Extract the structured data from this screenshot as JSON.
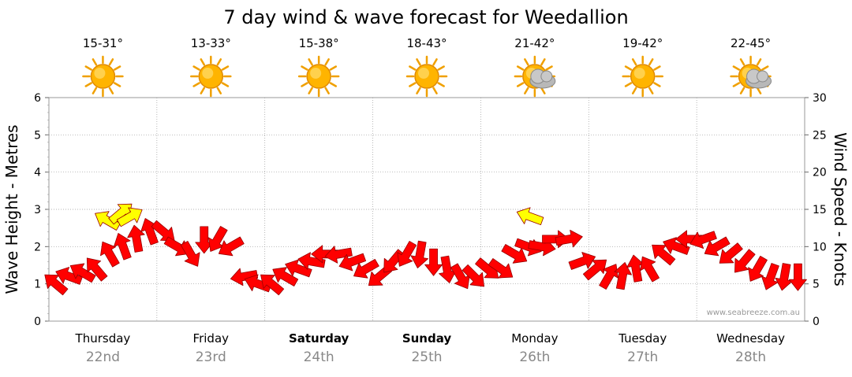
{
  "chart_data": {
    "type": "line",
    "title": "7 day wind & wave forecast for Weedallion",
    "ylabel_left": "Wave Height - Metres",
    "ylabel_right": "Wind Speed - Knots",
    "ylim_left": [
      0,
      6
    ],
    "ylim_right": [
      0,
      30
    ],
    "yticks_left": [
      "0",
      "1",
      "2",
      "3",
      "4",
      "5",
      "6"
    ],
    "yticks_right": [
      "0",
      "5",
      "10",
      "15",
      "20",
      "25",
      "30"
    ],
    "grid": true,
    "watermark": "www.seabreeze.com.au",
    "days": [
      {
        "day": "Thursday",
        "date": "22nd",
        "temp": "15-31°",
        "icon": "sun-icon",
        "bold": false
      },
      {
        "day": "Friday",
        "date": "23rd",
        "temp": "13-33°",
        "icon": "sun-icon",
        "bold": false
      },
      {
        "day": "Saturday",
        "date": "24th",
        "temp": "15-38°",
        "icon": "sun-icon",
        "bold": true
      },
      {
        "day": "Sunday",
        "date": "25th",
        "temp": "18-43°",
        "icon": "sun-icon",
        "bold": true
      },
      {
        "day": "Monday",
        "date": "26th",
        "temp": "21-42°",
        "icon": "partly-cloudy-icon",
        "bold": false
      },
      {
        "day": "Tuesday",
        "date": "27th",
        "temp": "19-42°",
        "icon": "sun-icon",
        "bold": false
      },
      {
        "day": "Wednesday",
        "date": "28th",
        "temp": "22-45°",
        "icon": "partly-cloudy-icon",
        "bold": false
      }
    ],
    "colors": {
      "wind": "#ff0000",
      "gust": "#ffff00",
      "arrow_stroke": "#990000",
      "grid": "#999999",
      "date": "#888888"
    },
    "wind_series": {
      "name": "Wind Speed (knots)",
      "x_hours": [
        0,
        3,
        6,
        9,
        12,
        15,
        18,
        21,
        24,
        27,
        30,
        33,
        36,
        39,
        42,
        45,
        48,
        51,
        54,
        57,
        60,
        63,
        66,
        69,
        72,
        75,
        78,
        81,
        84,
        87,
        90,
        93,
        96,
        99,
        102,
        105,
        108,
        111,
        114,
        117,
        120,
        123,
        126,
        129,
        132,
        135,
        138,
        141,
        144,
        147,
        150,
        153,
        156,
        159,
        162,
        165
      ],
      "speed": [
        5,
        6,
        6.5,
        7,
        9,
        10,
        11,
        12,
        12,
        10,
        9,
        11,
        11,
        10,
        6,
        5,
        5,
        6,
        7,
        8,
        9,
        9,
        8,
        7,
        6,
        8,
        9,
        9,
        8,
        7,
        6,
        6,
        7,
        7,
        9,
        10,
        10,
        11,
        11,
        8,
        7,
        6,
        6,
        7,
        7,
        9,
        10,
        11,
        11,
        10,
        9,
        8,
        7,
        6,
        6,
        6
      ],
      "direction_deg": [
        220,
        200,
        210,
        230,
        240,
        250,
        260,
        250,
        40,
        30,
        60,
        90,
        120,
        150,
        170,
        200,
        220,
        210,
        200,
        190,
        180,
        170,
        160,
        150,
        140,
        130,
        120,
        100,
        90,
        80,
        60,
        45,
        40,
        35,
        30,
        20,
        10,
        0,
        350,
        340,
        320,
        300,
        280,
        260,
        240,
        220,
        200,
        180,
        160,
        150,
        140,
        130,
        120,
        110,
        100,
        90
      ]
    },
    "gust_series": {
      "name": "Wind Gust (knots)",
      "x_hours": [
        13,
        16,
        18,
        107
      ],
      "speed": [
        13.5,
        14.5,
        14,
        14
      ],
      "direction_deg": [
        210,
        320,
        330,
        200
      ]
    }
  }
}
